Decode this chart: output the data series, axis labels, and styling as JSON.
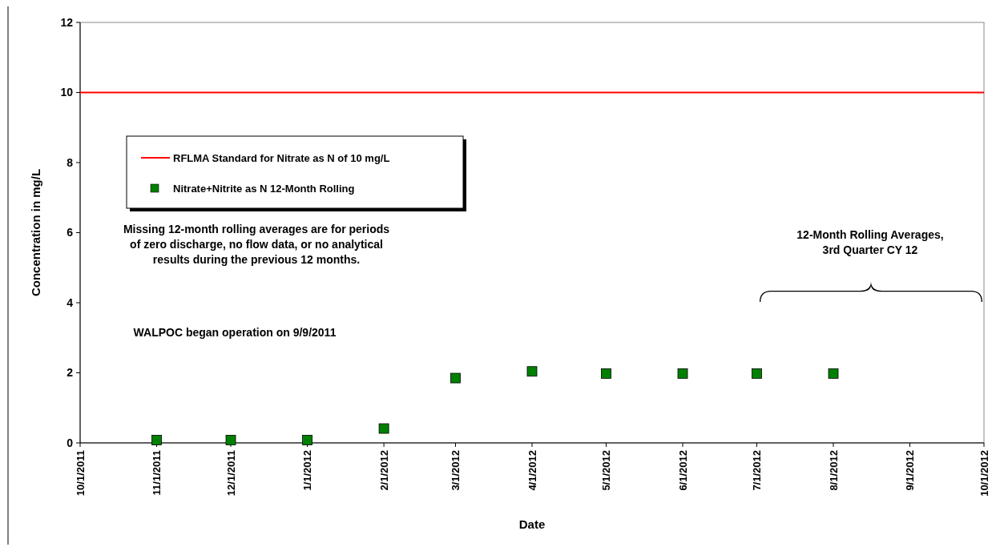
{
  "chart_data": {
    "type": "scatter",
    "xlabel": "Date",
    "ylabel": "Concentration in mg/L",
    "xlim": [
      "2011-10-01",
      "2012-10-01"
    ],
    "xticks": [
      {
        "value": "2011-10-01",
        "label": "10/1/2011"
      },
      {
        "value": "2011-11-01",
        "label": "11/1/2011"
      },
      {
        "value": "2011-12-01",
        "label": "12/1/2011"
      },
      {
        "value": "2012-01-01",
        "label": "1/1/2012"
      },
      {
        "value": "2012-02-01",
        "label": "2/1/2012"
      },
      {
        "value": "2012-03-01",
        "label": "3/1/2012"
      },
      {
        "value": "2012-04-01",
        "label": "4/1/2012"
      },
      {
        "value": "2012-05-01",
        "label": "5/1/2012"
      },
      {
        "value": "2012-06-01",
        "label": "6/1/2012"
      },
      {
        "value": "2012-07-01",
        "label": "7/1/2012"
      },
      {
        "value": "2012-08-01",
        "label": "8/1/2012"
      },
      {
        "value": "2012-09-01",
        "label": "9/1/2012"
      },
      {
        "value": "2012-10-01",
        "label": "10/1/2012"
      }
    ],
    "ylim": [
      0,
      12
    ],
    "yticks": [
      0,
      2,
      4,
      6,
      8,
      10,
      12
    ],
    "grid": false,
    "legend": "left",
    "series": [
      {
        "name": "RFLMA Standard for Nitrate as N of 10 mg/L",
        "type": "line",
        "color": "#ff0000",
        "marker": "none",
        "line_style": "solid",
        "x": [
          "2011-10-01",
          "2012-10-01"
        ],
        "values": [
          10,
          10
        ]
      },
      {
        "name": "Nitrate+Nitrite as N 12-Month Rolling",
        "color": "#008000",
        "marker": "square",
        "x": [
          "2011-11-01",
          "2011-12-01",
          "2012-01-01",
          "2012-02-01",
          "2012-03-01",
          "2012-04-01",
          "2012-05-01",
          "2012-06-01",
          "2012-07-01",
          "2012-08-01"
        ],
        "values": [
          0.08,
          0.08,
          0.08,
          0.41,
          1.85,
          2.04,
          1.98,
          1.98,
          1.98,
          1.98
        ]
      }
    ],
    "annotations": [
      "Missing 12-month rolling averages  are for periods\nof zero discharge,  no flow data,  or no analytical\nresults during  the previous  12 months.",
      "WALPOC began operation  on 9/9/2011",
      "12-Month Rolling Averages,\n3rd Quarter CY 12"
    ]
  }
}
